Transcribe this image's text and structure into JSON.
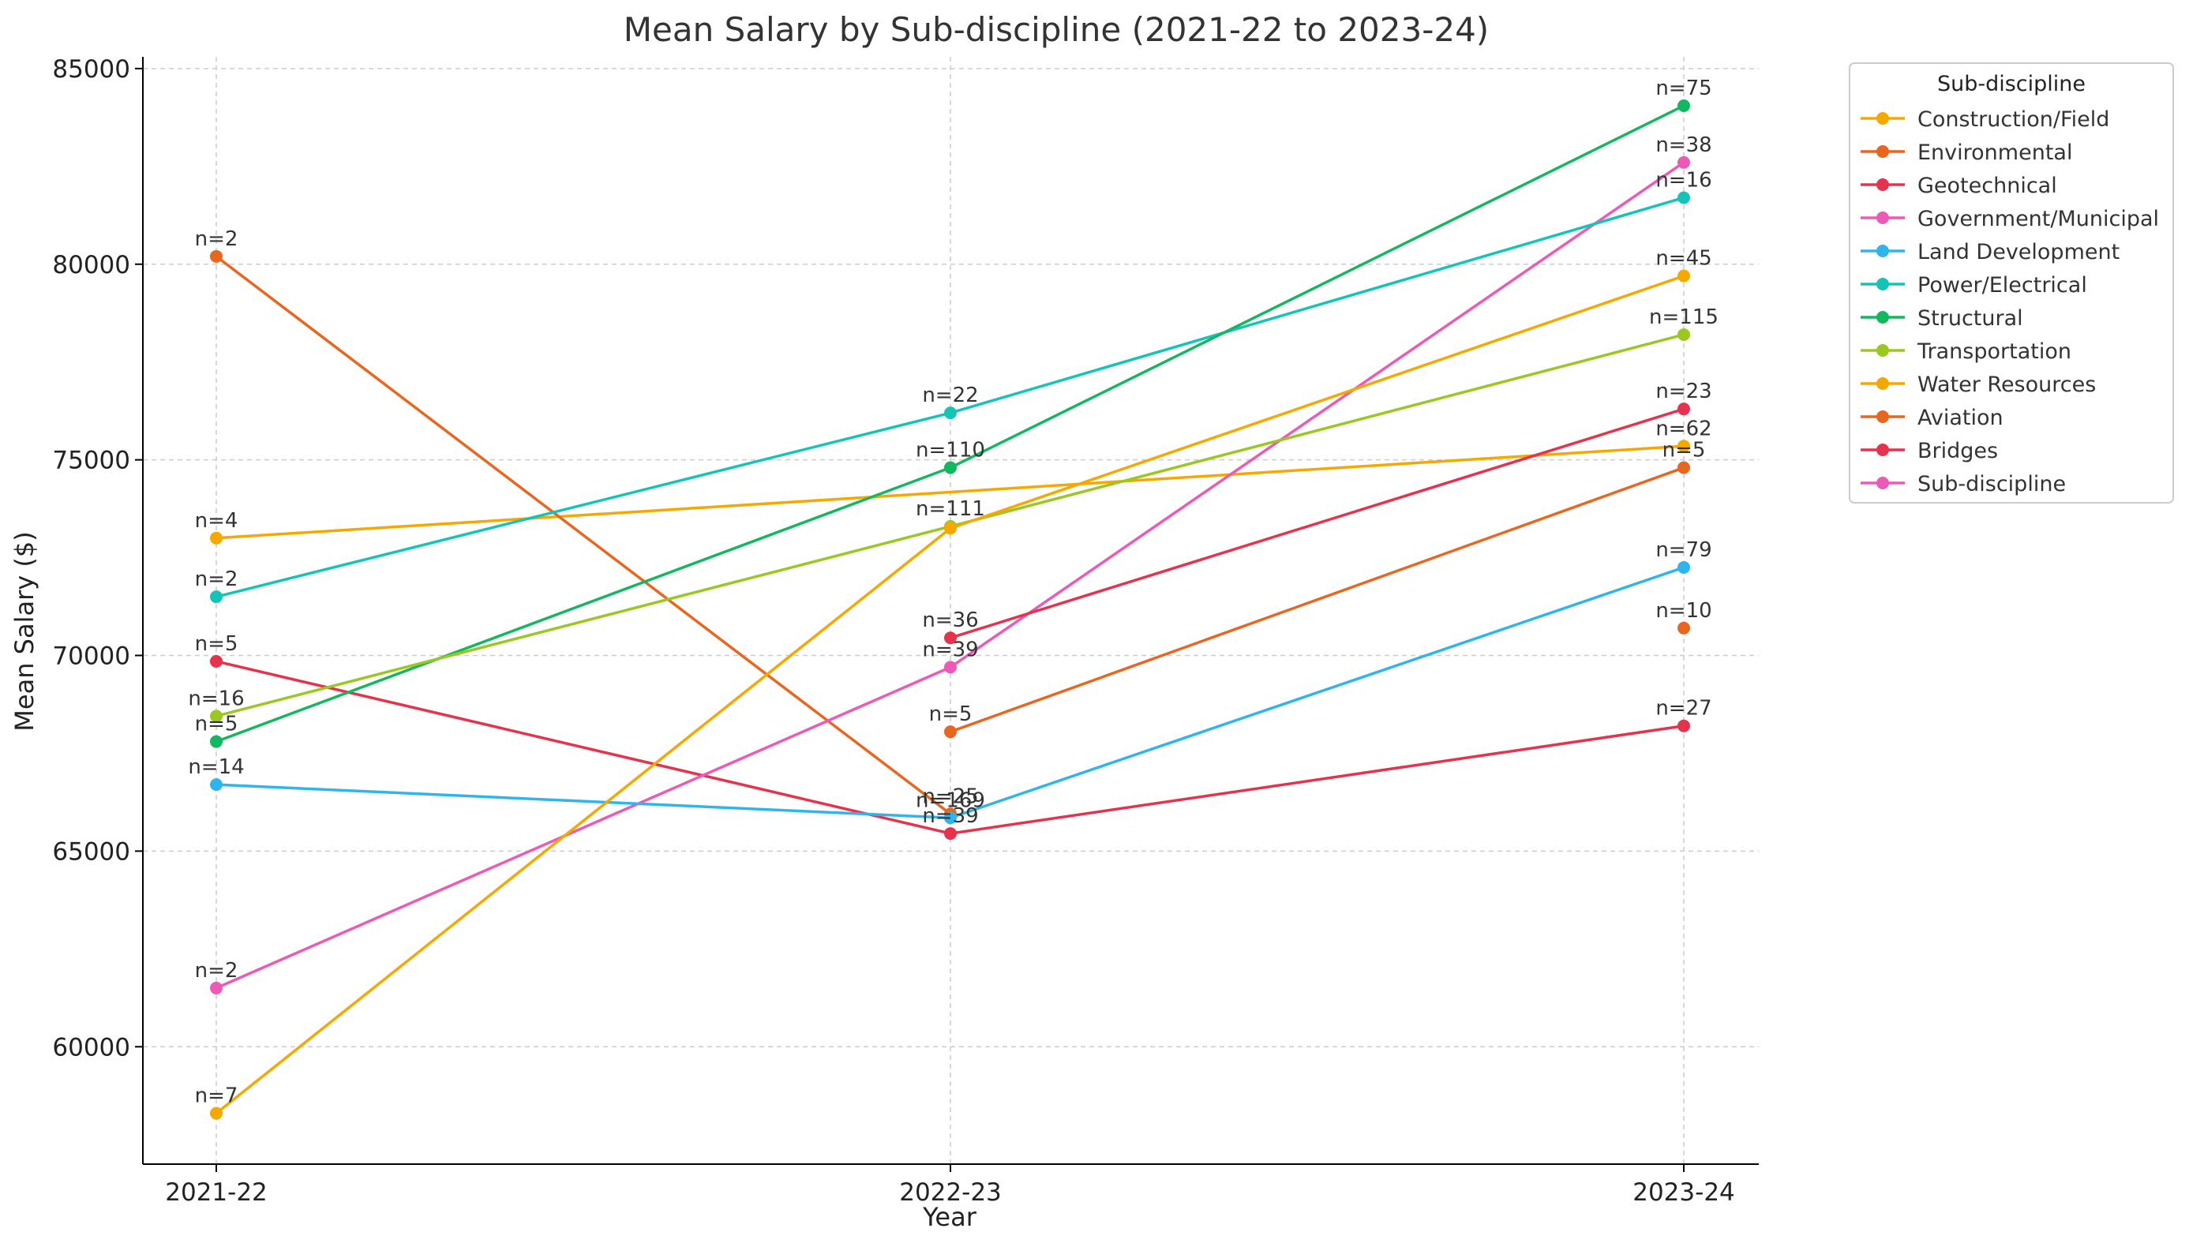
{
  "chart_data": {
    "type": "line",
    "title": "Mean Salary by Sub-discipline (2021-22 to 2023-24)",
    "xlabel": "Year",
    "ylabel": "Mean Salary ($)",
    "categories": [
      "2021-22",
      "2022-23",
      "2023-24"
    ],
    "ylim": [
      57000,
      85300
    ],
    "yticks": [
      60000,
      65000,
      70000,
      75000,
      80000,
      85000
    ],
    "grid": true,
    "legend": {
      "title": "Sub-discipline",
      "placement": "outside-right-top"
    },
    "series": [
      {
        "name": "Construction/Field",
        "color": "#f5a800",
        "values": [
          73000,
          null,
          75350
        ],
        "n": [
          "n=4",
          null,
          "n=62"
        ]
      },
      {
        "name": "Environmental",
        "color": "#e8661f",
        "values": [
          80200,
          65950,
          null
        ],
        "n": [
          "n=2",
          "n=25",
          null
        ]
      },
      {
        "name": "Geotechnical",
        "color": "#e5334e",
        "values": [
          69850,
          65450,
          68200
        ],
        "n": [
          "n=5",
          "n=39",
          "n=27"
        ]
      },
      {
        "name": "Government/Municipal",
        "color": "#ec5ab7",
        "values": [
          61500,
          69700,
          82600
        ],
        "n": [
          "n=2",
          "n=39",
          "n=38"
        ]
      },
      {
        "name": "Land Development",
        "color": "#2fb5ec",
        "values": [
          66700,
          65850,
          72250
        ],
        "n": [
          "n=14",
          "n=169",
          "n=79"
        ]
      },
      {
        "name": "Power/Electrical",
        "color": "#14c4b8",
        "values": [
          71500,
          76200,
          81700
        ],
        "n": [
          "n=2",
          "n=22",
          "n=16"
        ]
      },
      {
        "name": "Structural",
        "color": "#13b760",
        "values": [
          67800,
          74800,
          84050
        ],
        "n": [
          "n=5",
          "n=110",
          "n=75"
        ]
      },
      {
        "name": "Transportation",
        "color": "#9ac821",
        "values": [
          68450,
          73300,
          78200
        ],
        "n": [
          "n=16",
          "n=111",
          "n=115"
        ]
      },
      {
        "name": "Water Resources",
        "color": "#f5a800",
        "values": [
          58300,
          73250,
          79700
        ],
        "n": [
          "n=7",
          null,
          "n=45"
        ]
      },
      {
        "name": "Aviation",
        "color": "#e8661f",
        "values": [
          null,
          68050,
          74800
        ],
        "n": [
          null,
          "n=5",
          "n=5"
        ]
      },
      {
        "name": "Bridges",
        "color": "#e5334e",
        "values": [
          null,
          70450,
          76300
        ],
        "n": [
          null,
          "n=36",
          "n=23"
        ]
      },
      {
        "name": "Sub-discipline",
        "color": "#ec5ab7",
        "values": [
          null,
          null,
          null
        ],
        "n": [
          null,
          null,
          null
        ]
      }
    ],
    "extra_labels": [
      {
        "category": "2023-24",
        "value": 70700,
        "text": "n=10",
        "color": "#e8661f"
      }
    ]
  }
}
